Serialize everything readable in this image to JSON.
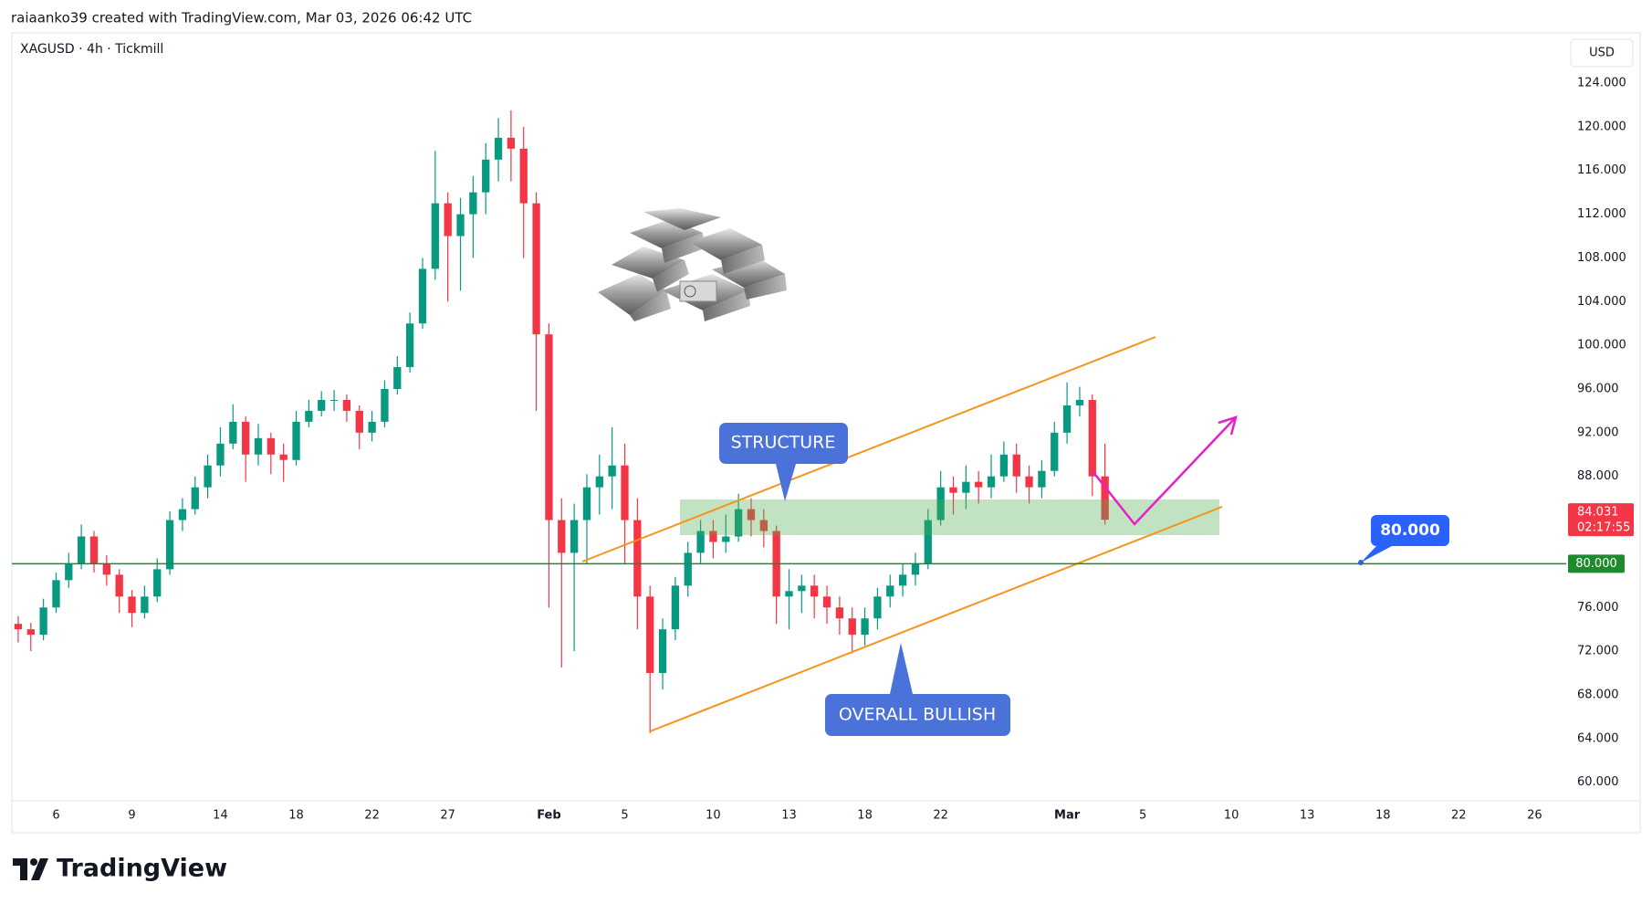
{
  "attribution": "raiaanko39 created with TradingView.com, Mar 03, 2026 06:42 UTC",
  "logo": "TradingView",
  "chart_data": {
    "type": "candlestick",
    "title": "XAGUSD · 4h · Tickmill",
    "currency": "USD",
    "up_color": "#089981",
    "down_color": "#f23645",
    "categories": [
      null,
      null,
      null,
      "6",
      null,
      null,
      null,
      null,
      null,
      "9",
      null,
      null,
      null,
      null,
      null,
      null,
      "14",
      null,
      null,
      null,
      null,
      null,
      "18",
      null,
      null,
      null,
      null,
      null,
      "22",
      null,
      null,
      null,
      null,
      null,
      "27",
      null,
      null,
      null,
      null,
      null,
      null,
      null,
      "Feb",
      null,
      null,
      null,
      null,
      null,
      "5",
      null,
      null,
      null,
      null,
      null,
      null,
      "10",
      null,
      null,
      null,
      null,
      null,
      "13",
      null,
      null,
      null,
      null,
      null,
      "18",
      null,
      null,
      null,
      null,
      null,
      "22",
      null,
      null,
      null,
      null,
      null,
      null,
      null,
      null,
      null,
      "Mar",
      null,
      null,
      null,
      null,
      null,
      "5",
      null,
      null,
      null,
      null,
      null,
      null,
      "10",
      null,
      null,
      null,
      null,
      null,
      "13",
      null,
      null,
      null,
      null,
      null,
      "18",
      null,
      null,
      null,
      null,
      null,
      "22",
      null,
      null,
      null,
      null,
      null,
      "26",
      null,
      null
    ],
    "open": [
      74.5,
      74,
      73.5,
      76,
      78.5,
      80,
      82.5,
      80,
      79,
      77,
      75.5,
      77,
      79.5,
      84,
      85,
      87,
      89,
      91,
      93,
      90,
      91.5,
      90,
      89.5,
      93,
      94,
      95,
      95,
      94,
      92,
      93,
      96,
      98,
      102,
      107,
      113,
      110,
      112,
      114,
      117,
      119,
      118,
      113,
      101,
      84,
      81,
      84,
      87,
      88,
      89,
      84,
      77,
      70,
      74,
      78,
      81,
      83,
      82,
      82.5,
      85,
      84,
      83,
      77,
      77.5,
      78,
      77,
      76,
      75,
      73.5,
      75,
      77,
      78,
      79,
      80,
      84,
      87,
      86.5,
      87.5,
      87,
      88,
      90,
      88,
      87,
      88.5,
      92,
      94.5,
      95,
      88,
      null,
      null,
      null,
      null,
      null,
      null,
      null,
      null,
      null,
      null,
      null,
      null,
      null,
      null,
      null,
      null,
      null,
      null,
      null,
      null,
      null,
      null,
      null,
      null,
      null,
      null,
      null,
      null,
      null,
      null,
      null,
      null,
      null,
      null,
      null,
      null
    ],
    "high": [
      75.2,
      74.6,
      76.8,
      79.2,
      81,
      83.6,
      83,
      80.8,
      79.5,
      77.6,
      78,
      80.5,
      84.8,
      86,
      88,
      90,
      92.5,
      94.6,
      93.5,
      92.8,
      92,
      91,
      94,
      95,
      95.8,
      95.9,
      95.5,
      94.5,
      94,
      96.8,
      99,
      103,
      108,
      117.8,
      114,
      113.5,
      115.5,
      118.5,
      120.8,
      121.5,
      120,
      114,
      102,
      86,
      85.5,
      88.2,
      90,
      92.5,
      91,
      86,
      78,
      75,
      78.8,
      82,
      84,
      84,
      84.5,
      86.4,
      86,
      85,
      83.5,
      79.5,
      79,
      79,
      78,
      77,
      76,
      76,
      77.8,
      79,
      80,
      81,
      85,
      88.5,
      88,
      89,
      88.5,
      90,
      91.2,
      91,
      89,
      89.5,
      93,
      96.6,
      96.2,
      95.5,
      91,
      null,
      null,
      null,
      null,
      null,
      null,
      null,
      null,
      null,
      null,
      null,
      null,
      null,
      null,
      null,
      null,
      null,
      null,
      null,
      null,
      null,
      null,
      null,
      null,
      null,
      null,
      null,
      null,
      null,
      null,
      null,
      null,
      null,
      null,
      null,
      null
    ],
    "low": [
      72.8,
      72,
      73,
      75.5,
      77.8,
      79.5,
      79.2,
      78,
      75.5,
      74.2,
      75,
      76.5,
      79,
      83,
      84.5,
      86,
      88,
      90.5,
      87.5,
      89,
      88.2,
      87.5,
      89,
      92.5,
      93.5,
      94,
      93,
      90.5,
      91.2,
      92.5,
      95.5,
      97.5,
      101.5,
      106,
      104,
      105,
      108,
      112,
      115,
      115,
      108,
      94,
      76,
      70.5,
      72,
      80,
      84.5,
      85,
      80,
      74,
      64.5,
      68.5,
      73,
      77,
      80,
      80.5,
      81,
      82,
      82.5,
      81.5,
      74.5,
      74,
      75.5,
      75,
      74.5,
      73.5,
      71.8,
      72.5,
      74,
      76,
      77,
      78,
      79.5,
      83.5,
      84.5,
      85,
      85.5,
      86,
      87.5,
      86.5,
      85.5,
      86,
      88,
      91,
      93.5,
      86.2,
      83.6,
      null,
      null,
      null,
      null,
      null,
      null,
      null,
      null,
      null,
      null,
      null,
      null,
      null,
      null,
      null,
      null,
      null,
      null,
      null,
      null,
      null,
      null,
      null,
      null,
      null,
      null,
      null,
      null,
      null,
      null,
      null,
      null,
      null,
      null,
      null,
      null
    ],
    "close": [
      74,
      73.5,
      76,
      78.5,
      80,
      82.5,
      80,
      79,
      77,
      75.5,
      77,
      79.5,
      84,
      85,
      87,
      89,
      91,
      93,
      90,
      91.5,
      90,
      89.5,
      93,
      94,
      95,
      95,
      94,
      92,
      93,
      96,
      98,
      102,
      107,
      113,
      110,
      112,
      114,
      117,
      119,
      118,
      113,
      101,
      84,
      81,
      84,
      87,
      88,
      89,
      84,
      77,
      70,
      74,
      78,
      81,
      83,
      82,
      82.5,
      85,
      84,
      83,
      77,
      77.5,
      78,
      77,
      76,
      75,
      73.5,
      75,
      77,
      78,
      79,
      80,
      84,
      87,
      86.5,
      87.5,
      87,
      88,
      90,
      88,
      87,
      88.5,
      92,
      94.5,
      95,
      88,
      84.031,
      null,
      null,
      null,
      null,
      null,
      null,
      null,
      null,
      null,
      null,
      null,
      null,
      null,
      null,
      null,
      null,
      null,
      null,
      null,
      null,
      null,
      null,
      null,
      null,
      null,
      null,
      null,
      null,
      null,
      null,
      null,
      null,
      null,
      null,
      null,
      null
    ],
    "last_price_label": "84.031",
    "countdown": "02:17:55",
    "ylim": [
      58.3,
      128.6
    ],
    "yticks": [
      {
        "value": 60,
        "label": "60.000"
      },
      {
        "value": 64,
        "label": "64.000"
      },
      {
        "value": 68,
        "label": "68.000"
      },
      {
        "value": 72,
        "label": "72.000"
      },
      {
        "value": 76,
        "label": "76.000"
      },
      {
        "value": 80,
        "label": "80.000"
      },
      {
        "value": 84,
        "label": "84.000"
      },
      {
        "value": 88,
        "label": "88.000"
      },
      {
        "value": 92,
        "label": "92.000"
      },
      {
        "value": 96,
        "label": "96.000"
      },
      {
        "value": 100,
        "label": "100.000"
      },
      {
        "value": 104,
        "label": "104.000"
      },
      {
        "value": 108,
        "label": "108.000"
      },
      {
        "value": 112,
        "label": "112.000"
      },
      {
        "value": 116,
        "label": "116.000"
      },
      {
        "value": 120,
        "label": "120.000"
      },
      {
        "value": 124,
        "label": "124.000"
      }
    ],
    "grid": false,
    "horizontal_line": {
      "value": 80,
      "label": "80.000",
      "color": "#1e8a2e"
    },
    "annotations": [
      "STRUCTURE",
      "OVERALL BULLISH"
    ]
  }
}
